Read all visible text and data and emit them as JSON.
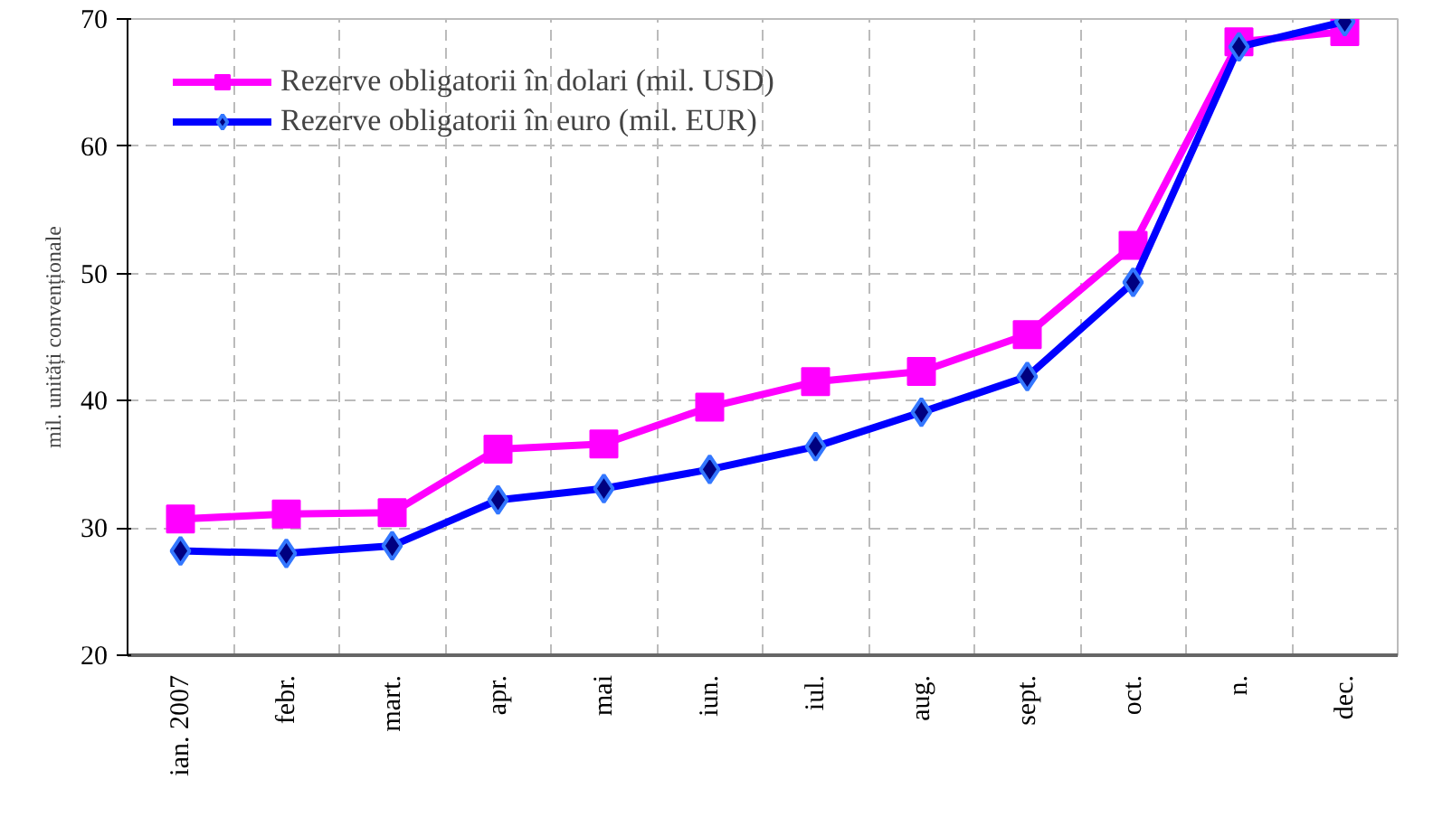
{
  "chart_data": {
    "type": "line",
    "ylabel": "mil. unități convenționale",
    "categories": [
      "ian. 2007",
      "febr.",
      "mart.",
      "apr.",
      "mai",
      "iun.",
      "iul.",
      "aug.",
      "sept.",
      "oct.",
      "n.",
      "dec."
    ],
    "series": [
      {
        "name": "Rezerve obligatorii în dolari (mil. USD)",
        "color": "#ff00ff",
        "marker": "square",
        "values": [
          30.7,
          31.1,
          31.2,
          36.2,
          36.6,
          39.5,
          41.5,
          42.3,
          45.2,
          52.2,
          68.2,
          69.0
        ]
      },
      {
        "name": "Rezerve obligatorii în euro (mil. EUR)",
        "color": "#0000ff",
        "marker": "diamond",
        "values": [
          28.2,
          28.0,
          28.6,
          32.2,
          33.1,
          34.6,
          36.4,
          39.1,
          41.9,
          49.3,
          67.8,
          69.8
        ]
      }
    ],
    "ylim": [
      20,
      70
    ],
    "yticks": [
      20,
      30,
      40,
      50,
      60,
      70
    ],
    "grid": true,
    "legend": "top left"
  }
}
